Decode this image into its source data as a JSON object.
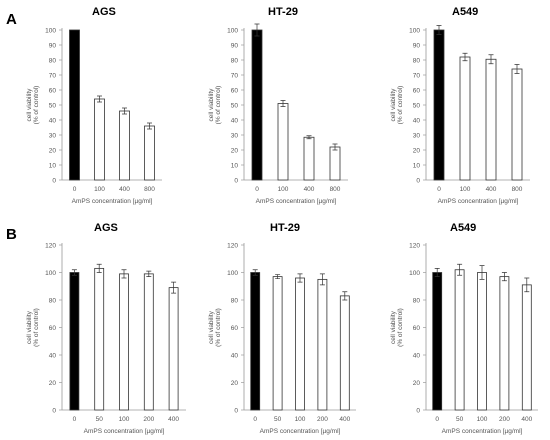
{
  "panels": [
    {
      "letter": "A"
    },
    {
      "letter": "B"
    }
  ],
  "chart_data": [
    {
      "type": "bar",
      "panel": "A",
      "title": "AGS",
      "categories": [
        "0",
        "100",
        "400",
        "800"
      ],
      "values": [
        100,
        54,
        46,
        36
      ],
      "errors": [
        0,
        2,
        2,
        2
      ],
      "bar_colors": [
        "#000000",
        "#ffffff",
        "#ffffff",
        "#ffffff"
      ],
      "ylabel_lines": [
        "cell viability",
        "(% of control)"
      ],
      "xlabel": "AmPS concentration [µg/ml]",
      "ylim": [
        0,
        100
      ],
      "yticks": [
        0,
        10,
        20,
        30,
        40,
        50,
        60,
        70,
        80,
        90,
        100
      ],
      "grid": false
    },
    {
      "type": "bar",
      "panel": "A",
      "title": "HT-29",
      "categories": [
        "0",
        "100",
        "400",
        "800"
      ],
      "values": [
        100,
        51,
        28.5,
        22
      ],
      "errors": [
        4,
        2,
        1,
        2
      ],
      "bar_colors": [
        "#000000",
        "#ffffff",
        "#ffffff",
        "#ffffff"
      ],
      "ylabel_lines": [
        "cell viability",
        "(% of control)"
      ],
      "xlabel": "AmPS concentration [µg/ml]",
      "ylim": [
        0,
        100
      ],
      "yticks": [
        0,
        10,
        20,
        30,
        40,
        50,
        60,
        70,
        80,
        90,
        100
      ],
      "grid": false
    },
    {
      "type": "bar",
      "panel": "A",
      "title": "A549",
      "categories": [
        "0",
        "100",
        "400",
        "800"
      ],
      "values": [
        100,
        82,
        80.5,
        74
      ],
      "errors": [
        3,
        2.5,
        3,
        3
      ],
      "bar_colors": [
        "#000000",
        "#ffffff",
        "#ffffff",
        "#ffffff"
      ],
      "ylabel_lines": [
        "cell viability",
        "(% of control)"
      ],
      "xlabel": "AmPS concentration [µg/ml]",
      "ylim": [
        0,
        100
      ],
      "yticks": [
        0,
        10,
        20,
        30,
        40,
        50,
        60,
        70,
        80,
        90,
        100
      ],
      "grid": false
    },
    {
      "type": "bar",
      "panel": "B",
      "title": "AGS",
      "categories": [
        "0",
        "50",
        "100",
        "200",
        "400"
      ],
      "values": [
        100,
        103,
        99,
        99,
        89
      ],
      "errors": [
        2,
        3,
        3,
        2,
        4
      ],
      "bar_colors": [
        "#000000",
        "#ffffff",
        "#ffffff",
        "#ffffff",
        "#ffffff"
      ],
      "ylabel_lines": [
        "cell viability",
        "(% of control)"
      ],
      "xlabel": "AmPS concentration [µg/ml]",
      "ylim": [
        0,
        120
      ],
      "yticks": [
        0,
        20,
        40,
        60,
        80,
        100,
        120
      ],
      "grid": false
    },
    {
      "type": "bar",
      "panel": "B",
      "title": "HT-29",
      "categories": [
        "0",
        "50",
        "100",
        "200",
        "400"
      ],
      "values": [
        100,
        97,
        96,
        95,
        83
      ],
      "errors": [
        2,
        1.5,
        3,
        4,
        3
      ],
      "bar_colors": [
        "#000000",
        "#ffffff",
        "#ffffff",
        "#ffffff",
        "#ffffff"
      ],
      "ylabel_lines": [
        "cell viability",
        "(% of control)"
      ],
      "xlabel": "AmPS concentration [µg/ml]",
      "ylim": [
        0,
        120
      ],
      "yticks": [
        0,
        20,
        40,
        60,
        80,
        100,
        120
      ],
      "grid": false
    },
    {
      "type": "bar",
      "panel": "B",
      "title": "A549",
      "categories": [
        "0",
        "50",
        "100",
        "200",
        "400"
      ],
      "values": [
        100,
        102,
        100,
        97,
        91
      ],
      "errors": [
        3,
        4,
        5,
        3,
        5
      ],
      "bar_colors": [
        "#000000",
        "#ffffff",
        "#ffffff",
        "#ffffff",
        "#ffffff"
      ],
      "ylabel_lines": [
        "cell viability",
        "(% of control)"
      ],
      "xlabel": "AmPS concentration [µg/ml]",
      "ylim": [
        0,
        120
      ],
      "yticks": [
        0,
        20,
        40,
        60,
        80,
        100,
        120
      ],
      "grid": false
    }
  ]
}
